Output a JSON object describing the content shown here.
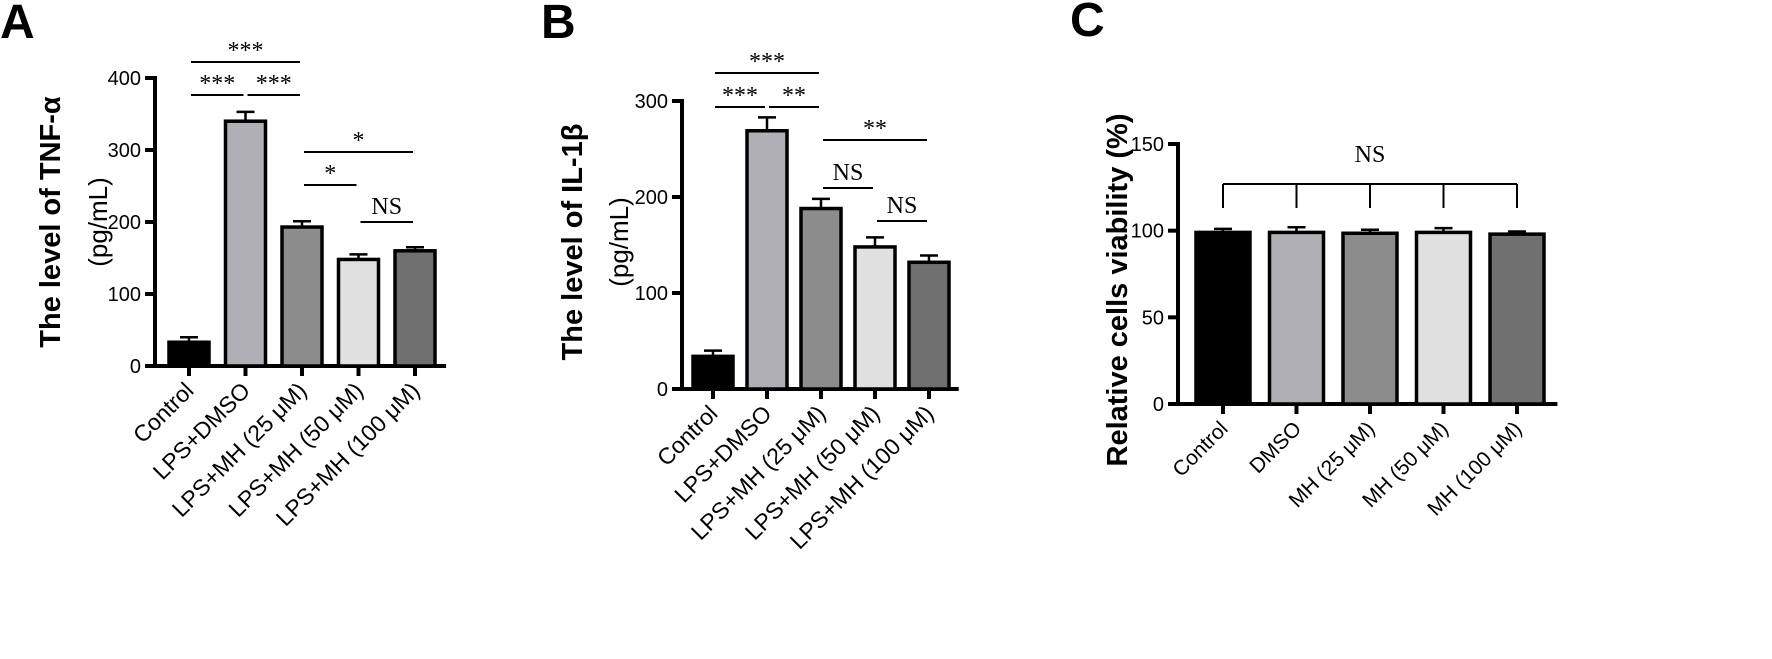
{
  "chart_data": [
    {
      "panel": "A",
      "type": "bar",
      "ylabel": "The level of TNF-α",
      "ylabel_unit": "(pg/mL)",
      "ylim": [
        0,
        400
      ],
      "yticks": [
        "0",
        "100",
        "200",
        "300",
        "400"
      ],
      "categories": [
        "Control",
        "LPS+DMSO",
        "LPS+MH (25 μM)",
        "LPS+MH (50 μM)",
        "LPS+MH (100 μM)"
      ],
      "values": [
        33,
        340,
        193,
        148,
        160
      ],
      "errors": [
        7,
        13,
        8,
        7,
        5
      ],
      "colors": [
        "#000000",
        "#b0b0b4",
        "#8c8c8c",
        "#e0e0e0",
        "#707070"
      ],
      "significance": [
        {
          "from": 0,
          "to": 2,
          "label": "***"
        },
        {
          "from": 0,
          "to": 1,
          "label": "***"
        },
        {
          "from": 1,
          "to": 2,
          "label": "***"
        },
        {
          "from": 2,
          "to": 4,
          "label": "*"
        },
        {
          "from": 2,
          "to": 3,
          "label": "*"
        },
        {
          "from": 3,
          "to": 4,
          "label": "NS"
        }
      ]
    },
    {
      "panel": "B",
      "type": "bar",
      "ylabel": "The level of IL-1β",
      "ylabel_unit": "(pg/mL)",
      "ylim": [
        0,
        300
      ],
      "yticks": [
        "0",
        "100",
        "200",
        "300"
      ],
      "categories": [
        "Control",
        "LPS+DMSO",
        "LPS+MH (25 μM)",
        "LPS+MH (50 μM)",
        "LPS+MH (100 μM)"
      ],
      "values": [
        34,
        269,
        188,
        148,
        132
      ],
      "errors": [
        6,
        14,
        10,
        10,
        7
      ],
      "colors": [
        "#000000",
        "#b0b0b4",
        "#8c8c8c",
        "#e0e0e0",
        "#707070"
      ],
      "significance": [
        {
          "from": 0,
          "to": 2,
          "label": "***"
        },
        {
          "from": 0,
          "to": 1,
          "label": "***"
        },
        {
          "from": 1,
          "to": 2,
          "label": "**"
        },
        {
          "from": 2,
          "to": 4,
          "label": "**"
        },
        {
          "from": 2,
          "to": 3,
          "label": "NS"
        },
        {
          "from": 3,
          "to": 4,
          "label": "NS"
        }
      ]
    },
    {
      "panel": "C",
      "type": "bar",
      "ylabel": "Relative cells viability (%)",
      "ylim": [
        0,
        150
      ],
      "yticks": [
        "0",
        "50",
        "100",
        "150"
      ],
      "categories": [
        "Control",
        "DMSO",
        "MH (25 μM)",
        "MH (50 μM)",
        "MH (100 μM)"
      ],
      "values": [
        99,
        99,
        98.5,
        99,
        98
      ],
      "errors": [
        2,
        3,
        2,
        2.5,
        1.5
      ],
      "colors": [
        "#000000",
        "#b0b0b4",
        "#8c8c8c",
        "#e0e0e0",
        "#707070"
      ],
      "significance": [
        {
          "group": [
            0,
            1,
            2,
            3,
            4
          ],
          "label": "NS"
        }
      ]
    }
  ]
}
